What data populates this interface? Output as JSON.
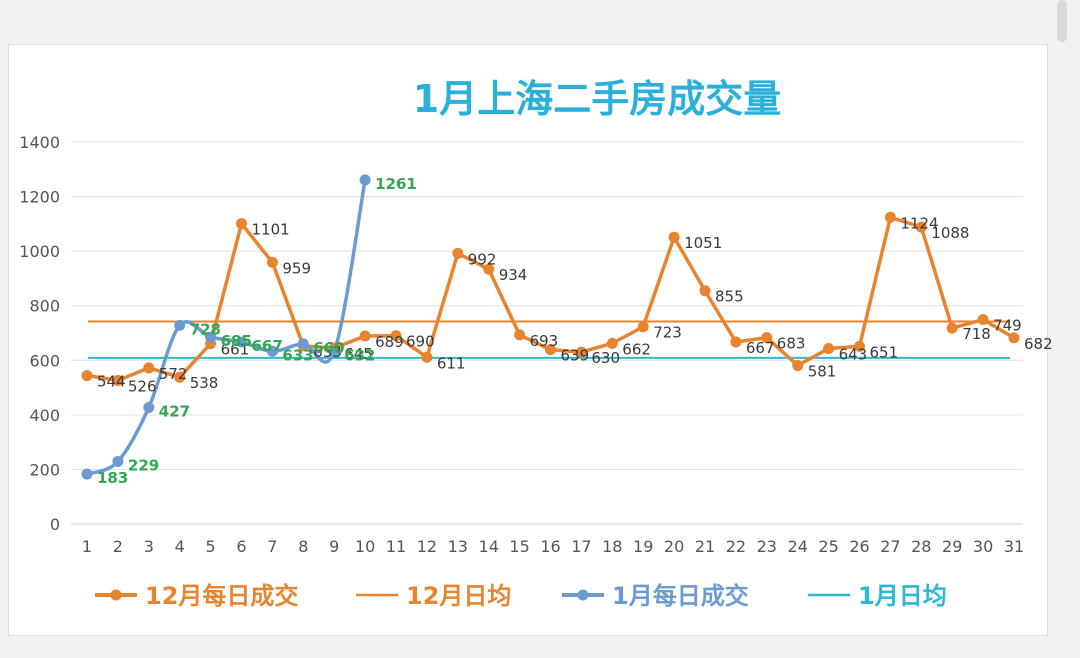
{
  "chart_data": {
    "type": "line",
    "title": "1月上海二手房成交量",
    "xlabel": "",
    "ylabel": "",
    "ylim": [
      0,
      1400
    ],
    "yticks": [
      0,
      200,
      400,
      600,
      800,
      1000,
      1200,
      1400
    ],
    "x": [
      1,
      2,
      3,
      4,
      5,
      6,
      7,
      8,
      9,
      10,
      11,
      12,
      13,
      14,
      15,
      16,
      17,
      18,
      19,
      20,
      21,
      22,
      23,
      24,
      25,
      26,
      27,
      28,
      29,
      30,
      31
    ],
    "grid": true,
    "legend_position": "bottom",
    "series": [
      {
        "name": "12月每日成交",
        "kind": "line-markers",
        "color": "#e8832e",
        "label_color": "#3a3a3a",
        "values": [
          544,
          526,
          572,
          538,
          661,
          1101,
          959,
          653,
          645,
          689,
          690,
          611,
          992,
          934,
          693,
          639,
          630,
          662,
          723,
          1051,
          855,
          667,
          683,
          581,
          643,
          651,
          1124,
          1088,
          718,
          749,
          682
        ],
        "labels": [
          "544",
          "526",
          "572",
          "538",
          "661",
          "1101",
          "959",
          "653",
          "645",
          "689",
          "690",
          "611",
          "992",
          "934",
          "693",
          "639",
          "630",
          "662",
          "723",
          "1051",
          "855",
          "667",
          "683",
          "581",
          "643",
          "651",
          "1124",
          "1088",
          "718",
          "749",
          "682"
        ]
      },
      {
        "name": "12月日均",
        "kind": "hline",
        "color": "#e8832e",
        "value": 742
      },
      {
        "name": "1月每日成交",
        "kind": "smooth-markers",
        "color": "#6b9bd1",
        "label_color": "#2fa84f",
        "x": [
          1,
          2,
          3,
          4,
          5,
          6,
          7,
          8,
          9,
          10
        ],
        "values": [
          183,
          229,
          427,
          728,
          685,
          667,
          633,
          660,
          632,
          1261
        ],
        "labels": [
          "183",
          "229",
          "427",
          "728",
          "685",
          "667",
          "633",
          "660",
          "632",
          "1261"
        ]
      },
      {
        "name": "1月日均",
        "kind": "hline",
        "color": "#2bb7d6",
        "value": 609
      }
    ]
  }
}
